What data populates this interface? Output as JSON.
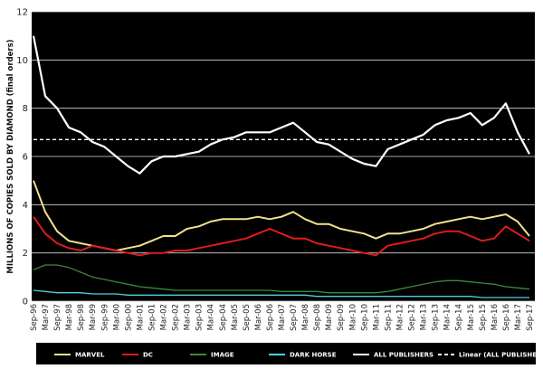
{
  "chart_data": {
    "type": "line",
    "title": "",
    "ylabel": "MILLIONS OF COPIES SOLD BY DIAMOND (final orders)",
    "xlabel": "",
    "ylim": [
      0,
      12
    ],
    "yticks": [
      0,
      2,
      4,
      6,
      8,
      10,
      12
    ],
    "grid": "horizontal",
    "background": "#000000",
    "legend_position": "bottom",
    "x_tick_labels": [
      "Sep-96",
      "Mar-97",
      "Sep-97",
      "Mar-98",
      "Sep-98",
      "Mar-99",
      "Sep-99",
      "Mar-00",
      "Sep-00",
      "Mar-01",
      "Sep-01",
      "Mar-02",
      "Sep-02",
      "Mar-03",
      "Sep-03",
      "Mar-04",
      "Sep-04",
      "Mar-05",
      "Sep-05",
      "Mar-06",
      "Sep-06",
      "Mar-07",
      "Sep-07",
      "Mar-08",
      "Sep-08",
      "Mar-09",
      "Sep-09",
      "Mar-10",
      "Sep-10",
      "Mar-11",
      "Sep-11",
      "Mar-12",
      "Sep-12",
      "Mar-13",
      "Sep-13",
      "Mar-14",
      "Sep-14",
      "Mar-15",
      "Sep-15",
      "Mar-16",
      "Sep-16",
      "Mar-17",
      "Sep-17"
    ],
    "series": [
      {
        "name": "MARVEL",
        "color": "#f2e28c",
        "values": [
          5.0,
          3.7,
          2.9,
          2.5,
          2.4,
          2.3,
          2.2,
          2.1,
          2.2,
          2.3,
          2.5,
          2.7,
          2.7,
          3.0,
          3.1,
          3.3,
          3.4,
          3.4,
          3.4,
          3.5,
          3.4,
          3.5,
          3.7,
          3.4,
          3.2,
          3.2,
          3.0,
          2.9,
          2.8,
          2.6,
          2.8,
          2.8,
          2.9,
          3.0,
          3.2,
          3.3,
          3.4,
          3.5,
          3.4,
          3.5,
          3.6,
          3.3,
          2.7
        ]
      },
      {
        "name": "DC",
        "color": "#e01b1b",
        "values": [
          3.5,
          2.8,
          2.4,
          2.2,
          2.1,
          2.3,
          2.2,
          2.1,
          2.0,
          1.9,
          2.0,
          2.0,
          2.1,
          2.1,
          2.2,
          2.3,
          2.4,
          2.5,
          2.6,
          2.8,
          3.0,
          2.8,
          2.6,
          2.6,
          2.4,
          2.3,
          2.2,
          2.1,
          2.0,
          1.9,
          2.3,
          2.4,
          2.5,
          2.6,
          2.8,
          2.9,
          2.9,
          2.7,
          2.5,
          2.6,
          3.1,
          2.8,
          2.5
        ]
      },
      {
        "name": "IMAGE",
        "color": "#3a8a3a",
        "values": [
          1.3,
          1.5,
          1.5,
          1.4,
          1.2,
          1.0,
          0.9,
          0.8,
          0.7,
          0.6,
          0.55,
          0.5,
          0.45,
          0.45,
          0.45,
          0.45,
          0.45,
          0.45,
          0.45,
          0.45,
          0.45,
          0.4,
          0.4,
          0.4,
          0.4,
          0.35,
          0.35,
          0.35,
          0.35,
          0.35,
          0.4,
          0.5,
          0.6,
          0.7,
          0.8,
          0.85,
          0.85,
          0.8,
          0.75,
          0.7,
          0.6,
          0.55,
          0.5
        ]
      },
      {
        "name": "DARK HORSE",
        "color": "#4fd0e0",
        "values": [
          0.45,
          0.4,
          0.35,
          0.35,
          0.35,
          0.3,
          0.3,
          0.3,
          0.25,
          0.25,
          0.25,
          0.25,
          0.25,
          0.25,
          0.25,
          0.25,
          0.25,
          0.25,
          0.25,
          0.25,
          0.25,
          0.25,
          0.25,
          0.25,
          0.2,
          0.2,
          0.2,
          0.2,
          0.2,
          0.2,
          0.2,
          0.2,
          0.2,
          0.2,
          0.2,
          0.2,
          0.2,
          0.2,
          0.15,
          0.15,
          0.15,
          0.15,
          0.15
        ]
      },
      {
        "name": "ALL PUBLISHERS",
        "color": "#ffffff",
        "values": [
          11.0,
          8.5,
          8.0,
          7.2,
          7.0,
          6.6,
          6.4,
          6.0,
          5.6,
          5.3,
          5.8,
          6.0,
          6.0,
          6.1,
          6.2,
          6.5,
          6.7,
          6.8,
          7.0,
          7.0,
          7.0,
          7.2,
          7.4,
          7.0,
          6.6,
          6.5,
          6.2,
          5.9,
          5.7,
          5.6,
          6.3,
          6.5,
          6.7,
          6.9,
          7.3,
          7.5,
          7.6,
          7.8,
          7.3,
          7.6,
          8.2,
          7.0,
          6.1
        ]
      },
      {
        "name": "Linear (ALL PUBLISHERS)",
        "color": "#ffffff",
        "dashed": true,
        "values": [
          6.7,
          6.7,
          6.7,
          6.7,
          6.7,
          6.7,
          6.7,
          6.7,
          6.7,
          6.7,
          6.7,
          6.7,
          6.7,
          6.7,
          6.7,
          6.7,
          6.7,
          6.7,
          6.7,
          6.7,
          6.7,
          6.7,
          6.7,
          6.7,
          6.7,
          6.7,
          6.7,
          6.7,
          6.7,
          6.7,
          6.7,
          6.7,
          6.7,
          6.7,
          6.7,
          6.7,
          6.7,
          6.7,
          6.7,
          6.7,
          6.7,
          6.7,
          6.7
        ]
      }
    ],
    "legend": [
      "MARVEL",
      "DC",
      "IMAGE",
      "DARK HORSE",
      "ALL PUBLISHERS",
      "Linear (ALL PUBLISHERS)"
    ]
  }
}
